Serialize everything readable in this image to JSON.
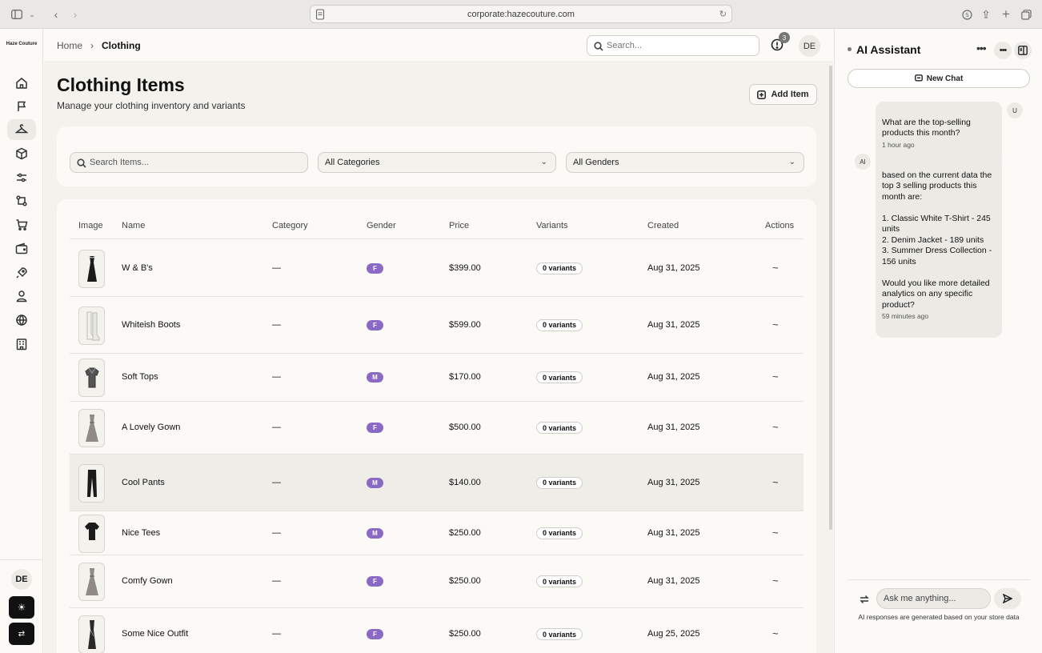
{
  "browser": {
    "url": "corporate:hazecouture.com"
  },
  "brand": "Haze Couture",
  "header": {
    "breadcrumb": [
      "Home",
      "Clothing"
    ],
    "search_placeholder": "Search...",
    "notification_count": "3",
    "avatar": "DE"
  },
  "page": {
    "title": "Clothing Items",
    "subtitle": "Manage your clothing inventory and variants",
    "add_label": "Add Item"
  },
  "filters": {
    "search_placeholder": "Search Items...",
    "category": "All Categories",
    "gender": "All Genders"
  },
  "table": {
    "columns": [
      "Image",
      "Name",
      "Category",
      "Gender",
      "Price",
      "Variants",
      "Created",
      "Actions"
    ],
    "rows": [
      {
        "image": "dress-icon",
        "name": "W & B's",
        "category": "—",
        "gender": "F",
        "price": "$399.00",
        "variants": "0 variants",
        "created": "Aug 31, 2025",
        "actions": "~"
      },
      {
        "image": "boots-icon",
        "name": "Whiteish Boots",
        "category": "—",
        "gender": "F",
        "price": "$599.00",
        "variants": "0 variants",
        "created": "Aug 31, 2025",
        "actions": "~"
      },
      {
        "image": "shirt-icon",
        "name": "Soft Tops",
        "category": "—",
        "gender": "M",
        "price": "$170.00",
        "variants": "0 variants",
        "created": "Aug 31, 2025",
        "actions": "~"
      },
      {
        "image": "gown-icon",
        "name": "A Lovely Gown",
        "category": "—",
        "gender": "F",
        "price": "$500.00",
        "variants": "0 variants",
        "created": "Aug 31, 2025",
        "actions": "~"
      },
      {
        "image": "pants-icon",
        "name": "Cool Pants",
        "category": "—",
        "gender": "M",
        "price": "$140.00",
        "variants": "0 variants",
        "created": "Aug 31, 2025",
        "actions": "~"
      },
      {
        "image": "tee-icon",
        "name": "Nice Tees",
        "category": "—",
        "gender": "M",
        "price": "$250.00",
        "variants": "0 variants",
        "created": "Aug 31, 2025",
        "actions": "~"
      },
      {
        "image": "gown-icon",
        "name": "Comfy Gown",
        "category": "—",
        "gender": "F",
        "price": "$250.00",
        "variants": "0 variants",
        "created": "Aug 31, 2025",
        "actions": "~"
      },
      {
        "image": "outfit-icon",
        "name": "Some Nice Outfit",
        "category": "—",
        "gender": "F",
        "price": "$250.00",
        "variants": "0 variants",
        "created": "Aug 25, 2025",
        "actions": "~"
      }
    ]
  },
  "sidebar": {
    "icons": [
      "home-icon",
      "flag-icon",
      "hanger-icon",
      "box-icon",
      "sliders-icon",
      "workflow-icon",
      "cart-icon",
      "wallet-icon",
      "rocket-icon",
      "user-icon",
      "globe-icon",
      "building-icon"
    ],
    "avatar": "DE"
  },
  "ai": {
    "title": "AI Assistant",
    "new_chat": "New Chat",
    "messages": [
      {
        "from": "U",
        "text": "What are the top-selling products this month?",
        "time": "1 hour ago"
      },
      {
        "from": "AI",
        "text": "based on the current data the top 3 selling products this month are:\n\n1. Classic White T-Shirt - 245 units\n2. Denim Jacket - 189 units\n3. Summer Dress Collection - 156 units\n\nWould you like more detailed analytics on any specific product?",
        "time": "59 minutes ago"
      }
    ],
    "input_placeholder": "Ask me anything...",
    "footer": "AI responses are generated based on your store data"
  }
}
